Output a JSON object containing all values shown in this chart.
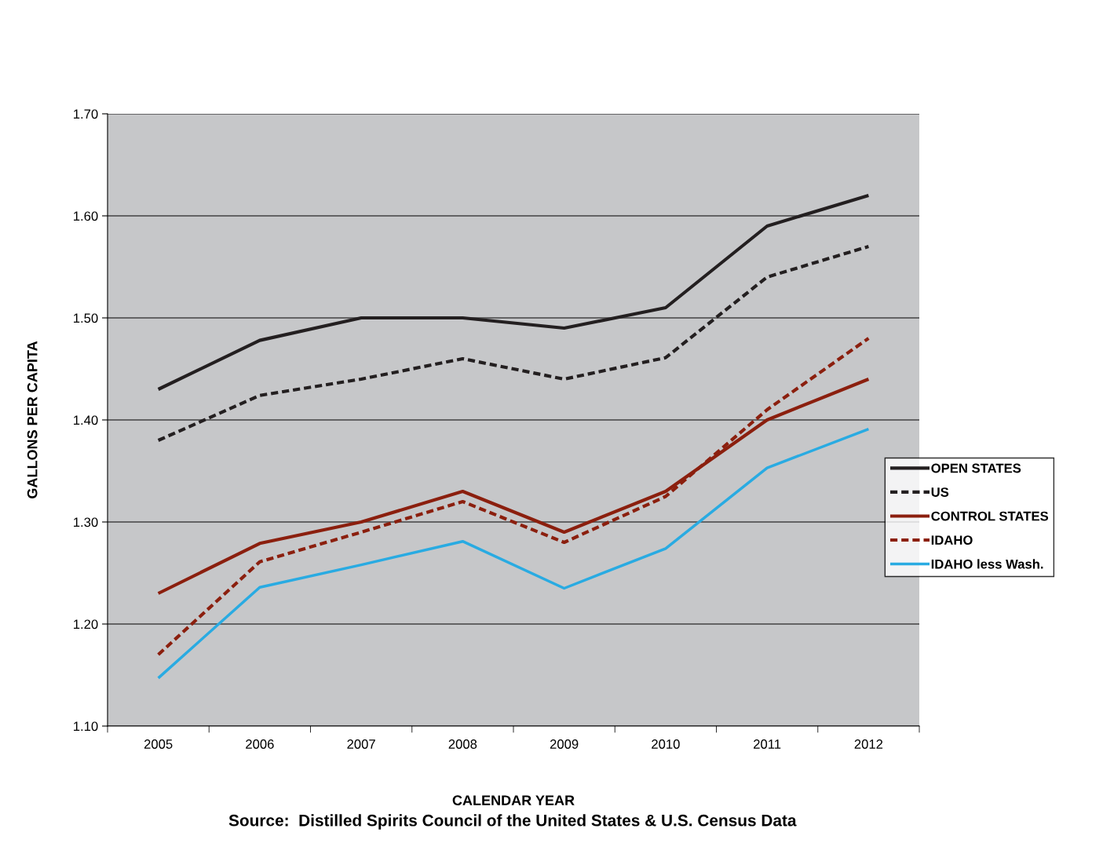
{
  "chart_data": {
    "type": "line",
    "xlabel": "CALENDAR YEAR",
    "ylabel": "GALLONS PER CAPITA",
    "categories": [
      "2005",
      "2006",
      "2007",
      "2008",
      "2009",
      "2010",
      "2011",
      "2012"
    ],
    "series": [
      {
        "name": "OPEN STATES",
        "color": "#231f20",
        "line_style": "solid",
        "values": [
          1.43,
          1.478,
          1.5,
          1.5,
          1.49,
          1.51,
          1.59,
          1.62
        ]
      },
      {
        "name": "US",
        "color": "#231f20",
        "line_style": "dashed",
        "values": [
          1.38,
          1.424,
          1.44,
          1.46,
          1.44,
          1.461,
          1.54,
          1.57
        ]
      },
      {
        "name": "CONTROL STATES",
        "color": "#8b1f0e",
        "line_style": "solid",
        "values": [
          1.23,
          1.279,
          1.3,
          1.33,
          1.29,
          1.33,
          1.4,
          1.44
        ]
      },
      {
        "name": "IDAHO",
        "color": "#8b1f0e",
        "line_style": "dashed",
        "values": [
          1.17,
          1.261,
          1.29,
          1.32,
          1.28,
          1.325,
          1.41,
          1.48
        ]
      },
      {
        "name": "IDAHO less Wash.",
        "color": "#29abe2",
        "line_style": "solid",
        "values": [
          1.147,
          1.236,
          1.258,
          1.281,
          1.235,
          1.274,
          1.353,
          1.391
        ]
      }
    ],
    "ylim": [
      1.1,
      1.7
    ],
    "yticks": [
      {
        "value": 1.1,
        "label": "1.10"
      },
      {
        "value": 1.2,
        "label": "1.20"
      },
      {
        "value": 1.3,
        "label": "1.30"
      },
      {
        "value": 1.4,
        "label": "1.40"
      },
      {
        "value": 1.5,
        "label": "1.50"
      },
      {
        "value": 1.6,
        "label": "1.60"
      },
      {
        "value": 1.7,
        "label": "1.70"
      }
    ],
    "grid": "y",
    "legend": "right",
    "marker": "none",
    "annotations": [
      "Source:  Distilled Spirits Council of the United States & U.S. Census Data"
    ]
  }
}
